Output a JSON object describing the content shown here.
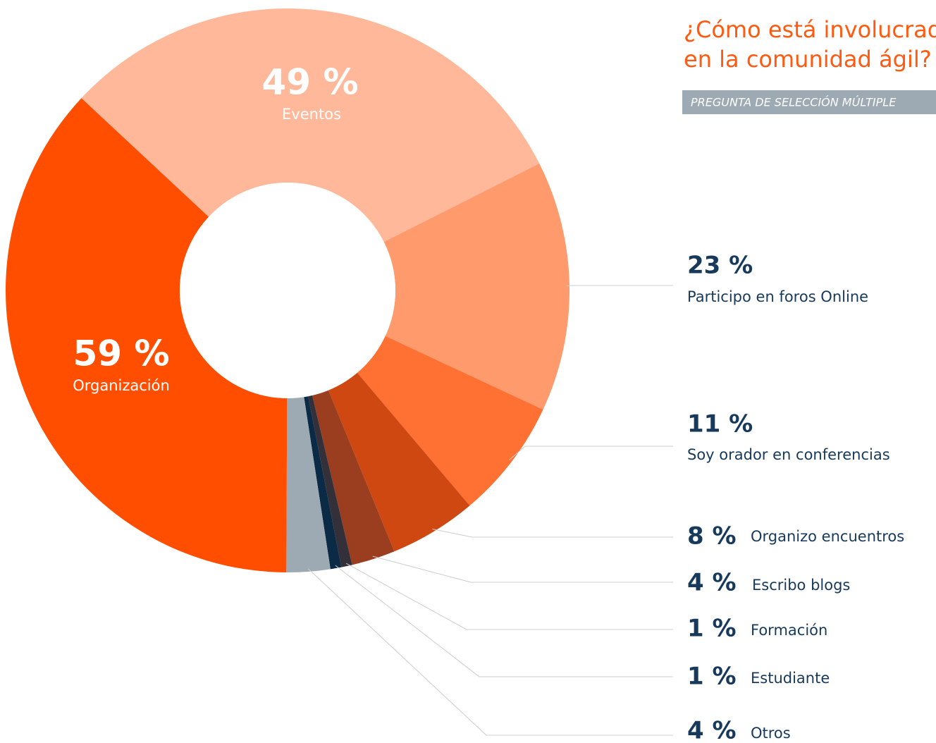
{
  "chart_data": {
    "type": "donut",
    "title": "¿Cómo está involucrado",
    "title_line2": "en la comunidad ágil?",
    "subtitle": "PREGUNTA DE SELECCIÓN MÚLTIPLE",
    "categories": [
      "Eventos",
      "Participo en foros Online",
      "Soy orador en conferencias",
      "Organizo encuentros",
      "Escribo blogs",
      "Formación",
      "Estudiante",
      "Otros",
      "Organización"
    ],
    "values": [
      49,
      23,
      11,
      8,
      4,
      1,
      1,
      4,
      59
    ],
    "value_labels": [
      "49 %",
      "23 %",
      "11 %",
      "8 %",
      "4 %",
      "1 %",
      "1 %",
      "4 %",
      "59 %"
    ],
    "colors": [
      "#ffb899",
      "#ff9a6c",
      "#ff7033",
      "#cf4811",
      "#9b3e1f",
      "#33303a",
      "#0b2a45",
      "#9eaab3",
      "#ff4e00"
    ]
  }
}
